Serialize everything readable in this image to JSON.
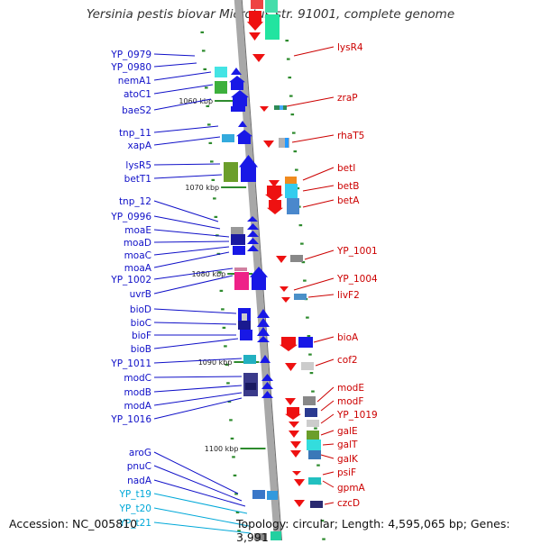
{
  "title": "Yersinia pestis biovar Microtus str. 91001, complete genome",
  "accession": "Accession: NC_005810",
  "topology": "Topology: circular; Length: 4,595,065 bp; Genes: 3,991",
  "colors": {
    "left_label": "#1010c8",
    "trna_label": "#00a8d8",
    "right_label": "#cc0000",
    "backbone": "#a8a8a8",
    "tick": "#2e8b2e"
  },
  "kbp_marks": [
    "1060 kbp",
    "1070 kbp",
    "1080 kbp",
    "1090 kbp",
    "1100 kbp"
  ],
  "left_genes": [
    {
      "label": "YP_0979",
      "kind": "gene"
    },
    {
      "label": "YP_0980",
      "kind": "gene"
    },
    {
      "label": "nemA1",
      "kind": "gene"
    },
    {
      "label": "atoC1",
      "kind": "gene"
    },
    {
      "label": "baeS2",
      "kind": "gene"
    },
    {
      "label": "tnp_11",
      "kind": "gene"
    },
    {
      "label": "xapA",
      "kind": "gene"
    },
    {
      "label": "lysR5",
      "kind": "gene"
    },
    {
      "label": "betT1",
      "kind": "gene"
    },
    {
      "label": "tnp_12",
      "kind": "gene"
    },
    {
      "label": "YP_0996",
      "kind": "gene"
    },
    {
      "label": "moaE",
      "kind": "gene"
    },
    {
      "label": "moaD",
      "kind": "gene"
    },
    {
      "label": "moaC",
      "kind": "gene"
    },
    {
      "label": "moaA",
      "kind": "gene"
    },
    {
      "label": "YP_1002",
      "kind": "gene"
    },
    {
      "label": "uvrB",
      "kind": "gene"
    },
    {
      "label": "bioD",
      "kind": "gene"
    },
    {
      "label": "bioC",
      "kind": "gene"
    },
    {
      "label": "bioF",
      "kind": "gene"
    },
    {
      "label": "bioB",
      "kind": "gene"
    },
    {
      "label": "YP_1011",
      "kind": "gene"
    },
    {
      "label": "modC",
      "kind": "gene"
    },
    {
      "label": "modB",
      "kind": "gene"
    },
    {
      "label": "modA",
      "kind": "gene"
    },
    {
      "label": "YP_1016",
      "kind": "gene"
    },
    {
      "label": "aroG",
      "kind": "gene"
    },
    {
      "label": "pnuC",
      "kind": "gene"
    },
    {
      "label": "nadA",
      "kind": "gene"
    },
    {
      "label": "YP_t19",
      "kind": "trna"
    },
    {
      "label": "YP_t20",
      "kind": "trna"
    },
    {
      "label": "YP_t21",
      "kind": "trna"
    }
  ],
  "right_genes": [
    {
      "label": "lysR4"
    },
    {
      "label": "zraP"
    },
    {
      "label": "rhaT5"
    },
    {
      "label": "betI"
    },
    {
      "label": "betB"
    },
    {
      "label": "betA"
    },
    {
      "label": "YP_1001"
    },
    {
      "label": "YP_1004"
    },
    {
      "label": "livF2"
    },
    {
      "label": "bioA"
    },
    {
      "label": "cof2"
    },
    {
      "label": "modE"
    },
    {
      "label": "modF"
    },
    {
      "label": "YP_1019"
    },
    {
      "label": "galE"
    },
    {
      "label": "galT"
    },
    {
      "label": "galK"
    },
    {
      "label": "psiF"
    },
    {
      "label": "gpmA"
    },
    {
      "label": "czcD"
    }
  ]
}
